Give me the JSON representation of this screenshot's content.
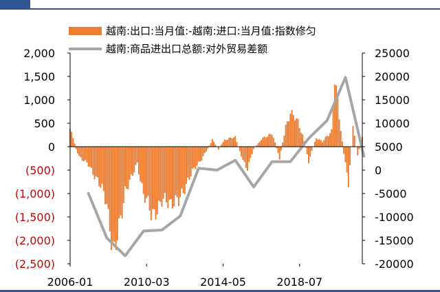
{
  "colors": {
    "bar": "#ed7d31",
    "line": "#a6a6a6",
    "negative_label": "#cc0000",
    "header": "#2f5597"
  },
  "chart_data": {
    "type": "bar",
    "legend": [
      {
        "label": "越南:出口:当月值:-越南:进口:当月值:指数修匀",
        "marker": "bar"
      },
      {
        "label": "越南:商品进出口总额:对外贸易差额",
        "marker": "line"
      }
    ],
    "legend_position": "top",
    "x_ticks": [
      "2006-01",
      "2010-03",
      "2014-05",
      "2018-07"
    ],
    "x_range": [
      "2006-01",
      "2021-12"
    ],
    "y_left": {
      "ylim": [
        -2500,
        2000
      ],
      "ticks": [
        {
          "value": 2000,
          "label": "2,000"
        },
        {
          "value": 1500,
          "label": "1,500"
        },
        {
          "value": 1000,
          "label": "1,000"
        },
        {
          "value": 500,
          "label": "500"
        },
        {
          "value": 0,
          "label": "0"
        },
        {
          "value": -500,
          "label": "(500)"
        },
        {
          "value": -1000,
          "label": "(1,000)"
        },
        {
          "value": -1500,
          "label": "(1,500)"
        },
        {
          "value": -2000,
          "label": "(2,000)"
        },
        {
          "value": -2500,
          "label": "(2,500)"
        }
      ]
    },
    "y_right": {
      "ylim": [
        -20000,
        25000
      ],
      "ticks": [
        {
          "value": 25000,
          "label": "25000"
        },
        {
          "value": 20000,
          "label": "20000"
        },
        {
          "value": 15000,
          "label": "15000"
        },
        {
          "value": 10000,
          "label": "10000"
        },
        {
          "value": 5000,
          "label": "5000"
        },
        {
          "value": 0,
          "label": "0"
        },
        {
          "value": -5000,
          "label": "-5000"
        },
        {
          "value": -10000,
          "label": "-10000"
        },
        {
          "value": -15000,
          "label": "-15000"
        },
        {
          "value": -20000,
          "label": "-20000"
        }
      ]
    },
    "bar_series": {
      "name": "越南:出口:当月值:-越南:进口:当月值:指数修匀",
      "anchors": [
        {
          "date": "2006-01",
          "value": 400
        },
        {
          "date": "2006-03",
          "value": 200
        },
        {
          "date": "2006-05",
          "value": -50
        },
        {
          "date": "2006-07",
          "value": -200
        },
        {
          "date": "2007-01",
          "value": -400
        },
        {
          "date": "2007-07",
          "value": -700
        },
        {
          "date": "2008-01",
          "value": -1200
        },
        {
          "date": "2008-04",
          "value": -1900
        },
        {
          "date": "2008-06",
          "value": -2300
        },
        {
          "date": "2008-09",
          "value": -1800
        },
        {
          "date": "2009-01",
          "value": -900
        },
        {
          "date": "2009-05",
          "value": -700
        },
        {
          "date": "2009-09",
          "value": -350
        },
        {
          "date": "2010-01",
          "value": -1000
        },
        {
          "date": "2010-06",
          "value": -1450
        },
        {
          "date": "2011-01",
          "value": -1200
        },
        {
          "date": "2011-06",
          "value": -1150
        },
        {
          "date": "2011-12",
          "value": -1200
        },
        {
          "date": "2012-06",
          "value": -700
        },
        {
          "date": "2013-01",
          "value": -350
        },
        {
          "date": "2013-06",
          "value": -100
        },
        {
          "date": "2013-10",
          "value": 150
        },
        {
          "date": "2014-02",
          "value": -50
        },
        {
          "date": "2014-06",
          "value": 150
        },
        {
          "date": "2015-01",
          "value": 200
        },
        {
          "date": "2015-06",
          "value": -300
        },
        {
          "date": "2015-09",
          "value": -450
        },
        {
          "date": "2016-01",
          "value": -50
        },
        {
          "date": "2016-06",
          "value": 150
        },
        {
          "date": "2017-01",
          "value": 300
        },
        {
          "date": "2017-06",
          "value": -250
        },
        {
          "date": "2017-10",
          "value": 450
        },
        {
          "date": "2018-01",
          "value": 700
        },
        {
          "date": "2018-06",
          "value": 550
        },
        {
          "date": "2018-09",
          "value": 250
        },
        {
          "date": "2019-01",
          "value": -300
        },
        {
          "date": "2019-06",
          "value": 200
        },
        {
          "date": "2019-10",
          "value": 100
        },
        {
          "date": "2020-04",
          "value": 350
        },
        {
          "date": "2020-06",
          "value": 1500
        },
        {
          "date": "2020-09",
          "value": 600
        },
        {
          "date": "2021-01",
          "value": -400
        },
        {
          "date": "2021-03",
          "value": -800
        },
        {
          "date": "2021-06",
          "value": 400
        },
        {
          "date": "2021-09",
          "value": -200
        },
        {
          "date": "2021-12",
          "value": 250
        }
      ]
    },
    "line_series": {
      "name": "越南:商品进出口总额:对外贸易差额",
      "points": [
        {
          "date": "2007-01",
          "value": -5000
        },
        {
          "date": "2008-01",
          "value": -14500
        },
        {
          "date": "2009-01",
          "value": -18300
        },
        {
          "date": "2010-01",
          "value": -13000
        },
        {
          "date": "2011-01",
          "value": -12800
        },
        {
          "date": "2012-01",
          "value": -9800
        },
        {
          "date": "2013-01",
          "value": 400
        },
        {
          "date": "2014-01",
          "value": 0
        },
        {
          "date": "2015-01",
          "value": 2100
        },
        {
          "date": "2016-01",
          "value": -3600
        },
        {
          "date": "2017-01",
          "value": 1800
        },
        {
          "date": "2018-01",
          "value": 1800
        },
        {
          "date": "2019-01",
          "value": 6800
        },
        {
          "date": "2020-01",
          "value": 10600
        },
        {
          "date": "2021-01",
          "value": 19800
        },
        {
          "date": "2022-01",
          "value": 3000
        }
      ]
    }
  }
}
